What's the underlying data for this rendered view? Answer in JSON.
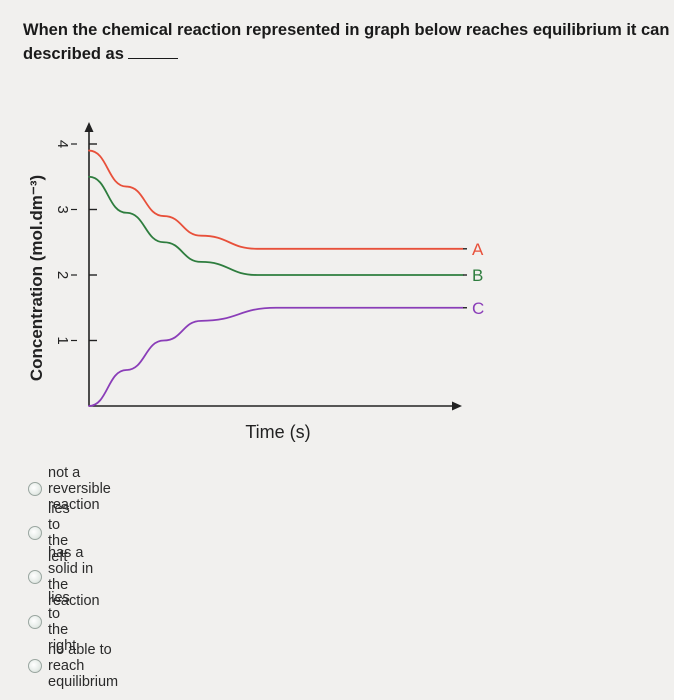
{
  "question": {
    "line1": "When the chemical reaction represented in graph below reaches equilibrium it can be",
    "line2": "described as"
  },
  "chart_data": {
    "type": "line",
    "xlabel": "Time (s)",
    "ylabel": "Concentration (mol.dm⁻³)",
    "yticks": [
      1,
      2,
      3,
      4
    ],
    "xlim": [
      0,
      10
    ],
    "ylim": [
      0,
      4.4
    ],
    "series": [
      {
        "name": "A",
        "color": "#e8503a",
        "x": [
          0,
          1,
          2,
          3,
          4.5,
          10
        ],
        "y": [
          3.9,
          3.35,
          2.9,
          2.6,
          2.4,
          2.4
        ]
      },
      {
        "name": "B",
        "color": "#2e7d3e",
        "x": [
          0,
          1,
          2,
          3,
          4.5,
          10
        ],
        "y": [
          3.5,
          2.95,
          2.5,
          2.2,
          2.0,
          2.0
        ]
      },
      {
        "name": "C",
        "color": "#8a3db8",
        "x": [
          0,
          1,
          2,
          3,
          5,
          10
        ],
        "y": [
          0,
          0.55,
          1.0,
          1.3,
          1.5,
          1.5
        ]
      }
    ]
  },
  "options": [
    {
      "label": "not a reversible reaction"
    },
    {
      "label": "lies to the left"
    },
    {
      "label": "has a solid in the reaction"
    },
    {
      "label": "lies to the right"
    },
    {
      "label": "no able to reach equilibrium"
    }
  ]
}
